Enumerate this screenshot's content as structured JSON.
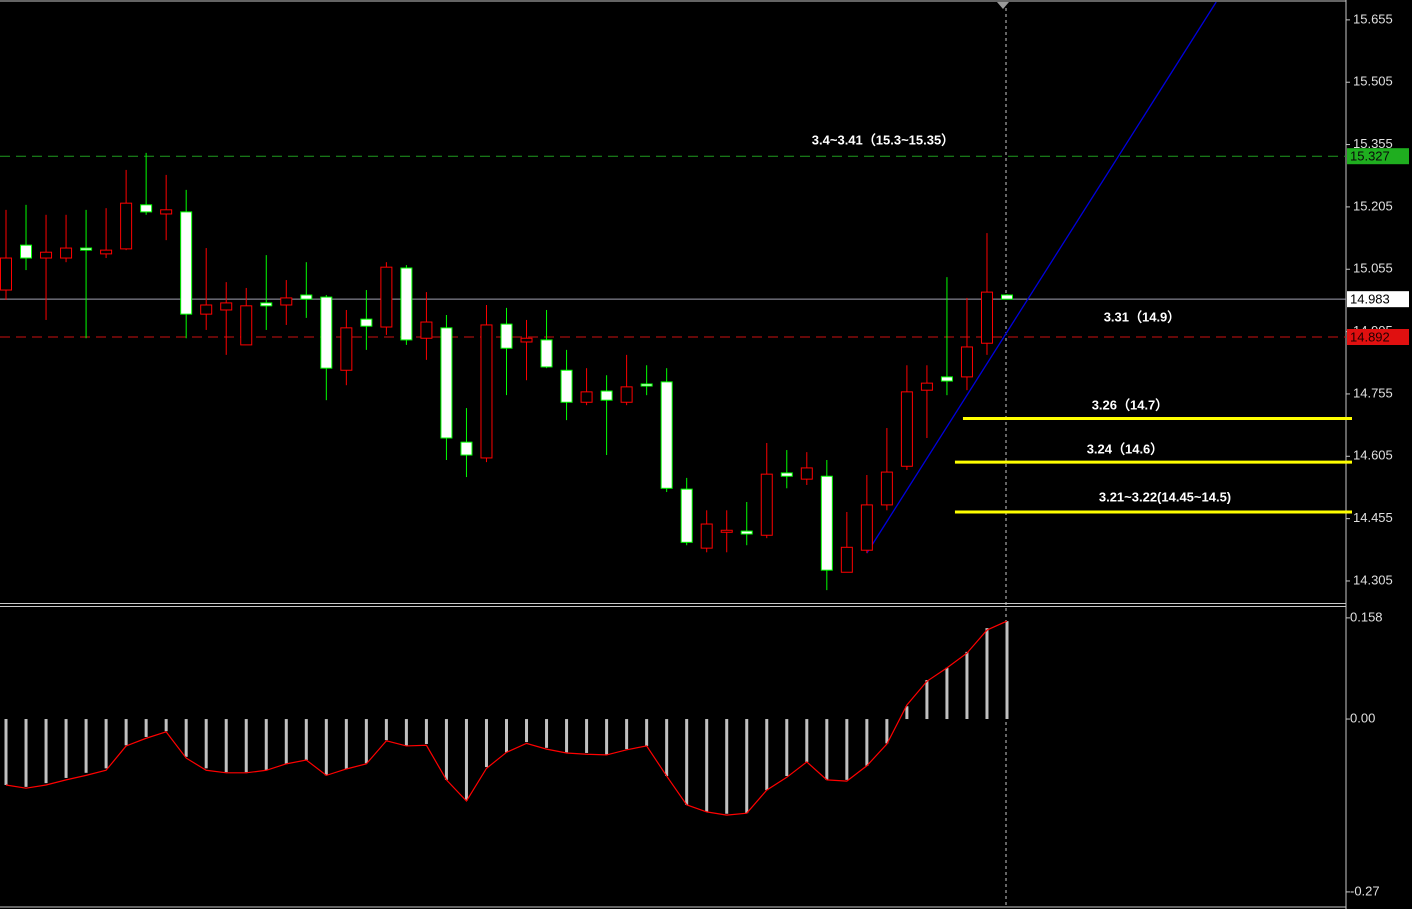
{
  "chart_data": [
    {
      "type": "candlestick",
      "open": [
        15.005,
        15.113,
        15.082,
        15.082,
        15.106,
        15.092,
        15.104,
        15.21,
        15.188,
        15.193,
        14.947,
        14.957,
        14.873,
        14.974,
        14.969,
        14.993,
        14.988,
        14.812,
        14.935,
        14.916,
        15.058,
        14.889,
        14.914,
        14.639,
        14.601,
        14.923,
        14.88,
        14.885,
        14.812,
        14.735,
        14.762,
        14.735,
        14.779,
        14.784,
        14.526,
        14.384,
        14.423,
        14.425,
        14.415,
        14.565,
        14.55,
        14.557,
        14.326,
        14.379,
        14.488,
        14.581,
        14.764,
        14.796,
        14.796,
        14.877,
        14.993
      ],
      "high": [
        15.198,
        15.21,
        15.186,
        15.186,
        15.198,
        15.202,
        15.294,
        15.335,
        15.282,
        15.246,
        15.106,
        15.024,
        15.01,
        15.089,
        15.029,
        15.072,
        14.993,
        14.957,
        15.005,
        15.072,
        15.065,
        15.0,
        14.945,
        14.721,
        14.969,
        14.962,
        14.933,
        14.957,
        14.861,
        14.817,
        14.8,
        14.849,
        14.824,
        14.817,
        14.553,
        14.475,
        14.475,
        14.495,
        14.637,
        14.62,
        14.615,
        14.596,
        14.471,
        14.56,
        14.673,
        14.824,
        14.824,
        15.036,
        14.986,
        15.142,
        14.995
      ],
      "low": [
        14.981,
        15.053,
        14.933,
        15.072,
        14.889,
        15.082,
        15.101,
        15.186,
        15.125,
        14.889,
        14.909,
        14.849,
        14.873,
        14.909,
        14.921,
        14.938,
        14.74,
        14.776,
        14.861,
        14.897,
        14.873,
        14.837,
        14.596,
        14.555,
        14.591,
        14.752,
        14.788,
        14.817,
        14.692,
        14.728,
        14.608,
        14.728,
        14.752,
        14.519,
        14.391,
        14.374,
        14.374,
        14.391,
        14.408,
        14.528,
        14.536,
        14.283,
        14.326,
        14.372,
        14.475,
        14.572,
        14.649,
        14.752,
        14.764,
        14.849,
        14.983
      ],
      "close": [
        15.082,
        15.082,
        15.096,
        15.106,
        15.101,
        15.101,
        15.214,
        15.193,
        15.198,
        14.947,
        14.969,
        14.974,
        14.967,
        14.967,
        14.986,
        14.983,
        14.817,
        14.914,
        14.918,
        15.06,
        14.885,
        14.928,
        14.649,
        14.608,
        14.921,
        14.865,
        14.889,
        14.82,
        14.735,
        14.76,
        14.74,
        14.772,
        14.774,
        14.528,
        14.398,
        14.442,
        14.427,
        14.418,
        14.562,
        14.557,
        14.577,
        14.331,
        14.386,
        14.488,
        14.567,
        14.76,
        14.781,
        14.786,
        14.868,
        15.0,
        14.983
      ],
      "up_color": "#ff0000",
      "down_color": "#ffffff",
      "down_wick_color": "#00ff00",
      "ylim": [
        14.252,
        15.698
      ],
      "yticks": [
        15.655,
        15.505,
        15.355,
        15.205,
        15.055,
        14.905,
        14.755,
        14.605,
        14.455,
        14.305
      ],
      "hlines": [
        {
          "value": 15.327,
          "color": "#1f9a1f",
          "style": "dashed",
          "tag_bg": "#1fae1f",
          "tag_fg": "#0a0a0a"
        },
        {
          "value": 14.983,
          "color": "#a0a0b0",
          "style": "solid",
          "tag_bg": "#ffffff",
          "tag_fg": "#000000"
        },
        {
          "value": 14.892,
          "color": "#cc1111",
          "style": "dashed",
          "tag_bg": "#e01010",
          "tag_fg": "#200000"
        },
        {
          "value": 14.696,
          "color": "#ffff00",
          "style": "solid",
          "x_from": 47.8
        },
        {
          "value": 14.591,
          "color": "#ffff00",
          "style": "solid",
          "x_from": 47.4
        },
        {
          "value": 14.471,
          "color": "#ffff00",
          "style": "solid",
          "x_from": 47.4
        }
      ],
      "trendline": {
        "x": [
          43,
          60.45
        ],
        "y": [
          14.372,
          15.698
        ],
        "color": "#0000dd"
      },
      "annotations": [
        "3.4~3.41（15.3~15.35）",
        "3.31（14.9）",
        "3.26（14.7）",
        "3.24（14.6）",
        "3.21~3.22(14.45~14.5)"
      ]
    },
    {
      "type": "bar",
      "values": [
        -0.103,
        -0.106,
        -0.1,
        -0.092,
        -0.084,
        -0.077,
        -0.041,
        -0.028,
        -0.019,
        -0.059,
        -0.077,
        -0.083,
        -0.083,
        -0.08,
        -0.07,
        -0.064,
        -0.088,
        -0.078,
        -0.069,
        -0.033,
        -0.042,
        -0.039,
        -0.095,
        -0.127,
        -0.075,
        -0.052,
        -0.036,
        -0.045,
        -0.052,
        -0.053,
        -0.056,
        -0.047,
        -0.042,
        -0.089,
        -0.134,
        -0.145,
        -0.148,
        -0.147,
        -0.111,
        -0.089,
        -0.067,
        -0.095,
        -0.095,
        -0.073,
        -0.038,
        0.02,
        0.061,
        0.08,
        0.105,
        0.142,
        0.153
      ],
      "color": "#c0c0c0",
      "signal": {
        "values": [
          -0.103,
          -0.108,
          -0.103,
          -0.095,
          -0.088,
          -0.08,
          -0.042,
          -0.03,
          -0.02,
          -0.061,
          -0.08,
          -0.084,
          -0.084,
          -0.08,
          -0.07,
          -0.064,
          -0.088,
          -0.078,
          -0.07,
          -0.034,
          -0.042,
          -0.041,
          -0.095,
          -0.128,
          -0.077,
          -0.052,
          -0.038,
          -0.047,
          -0.053,
          -0.055,
          -0.056,
          -0.048,
          -0.042,
          -0.089,
          -0.134,
          -0.145,
          -0.15,
          -0.147,
          -0.111,
          -0.091,
          -0.067,
          -0.095,
          -0.097,
          -0.073,
          -0.039,
          0.022,
          0.059,
          0.08,
          0.103,
          0.139,
          0.153
        ],
        "color": "#ff0000"
      },
      "ylim": [
        -0.292,
        0.175
      ],
      "yticks": [
        0.158,
        {
          "value": 0,
          "label": "0.00"
        },
        -0.27
      ]
    }
  ]
}
